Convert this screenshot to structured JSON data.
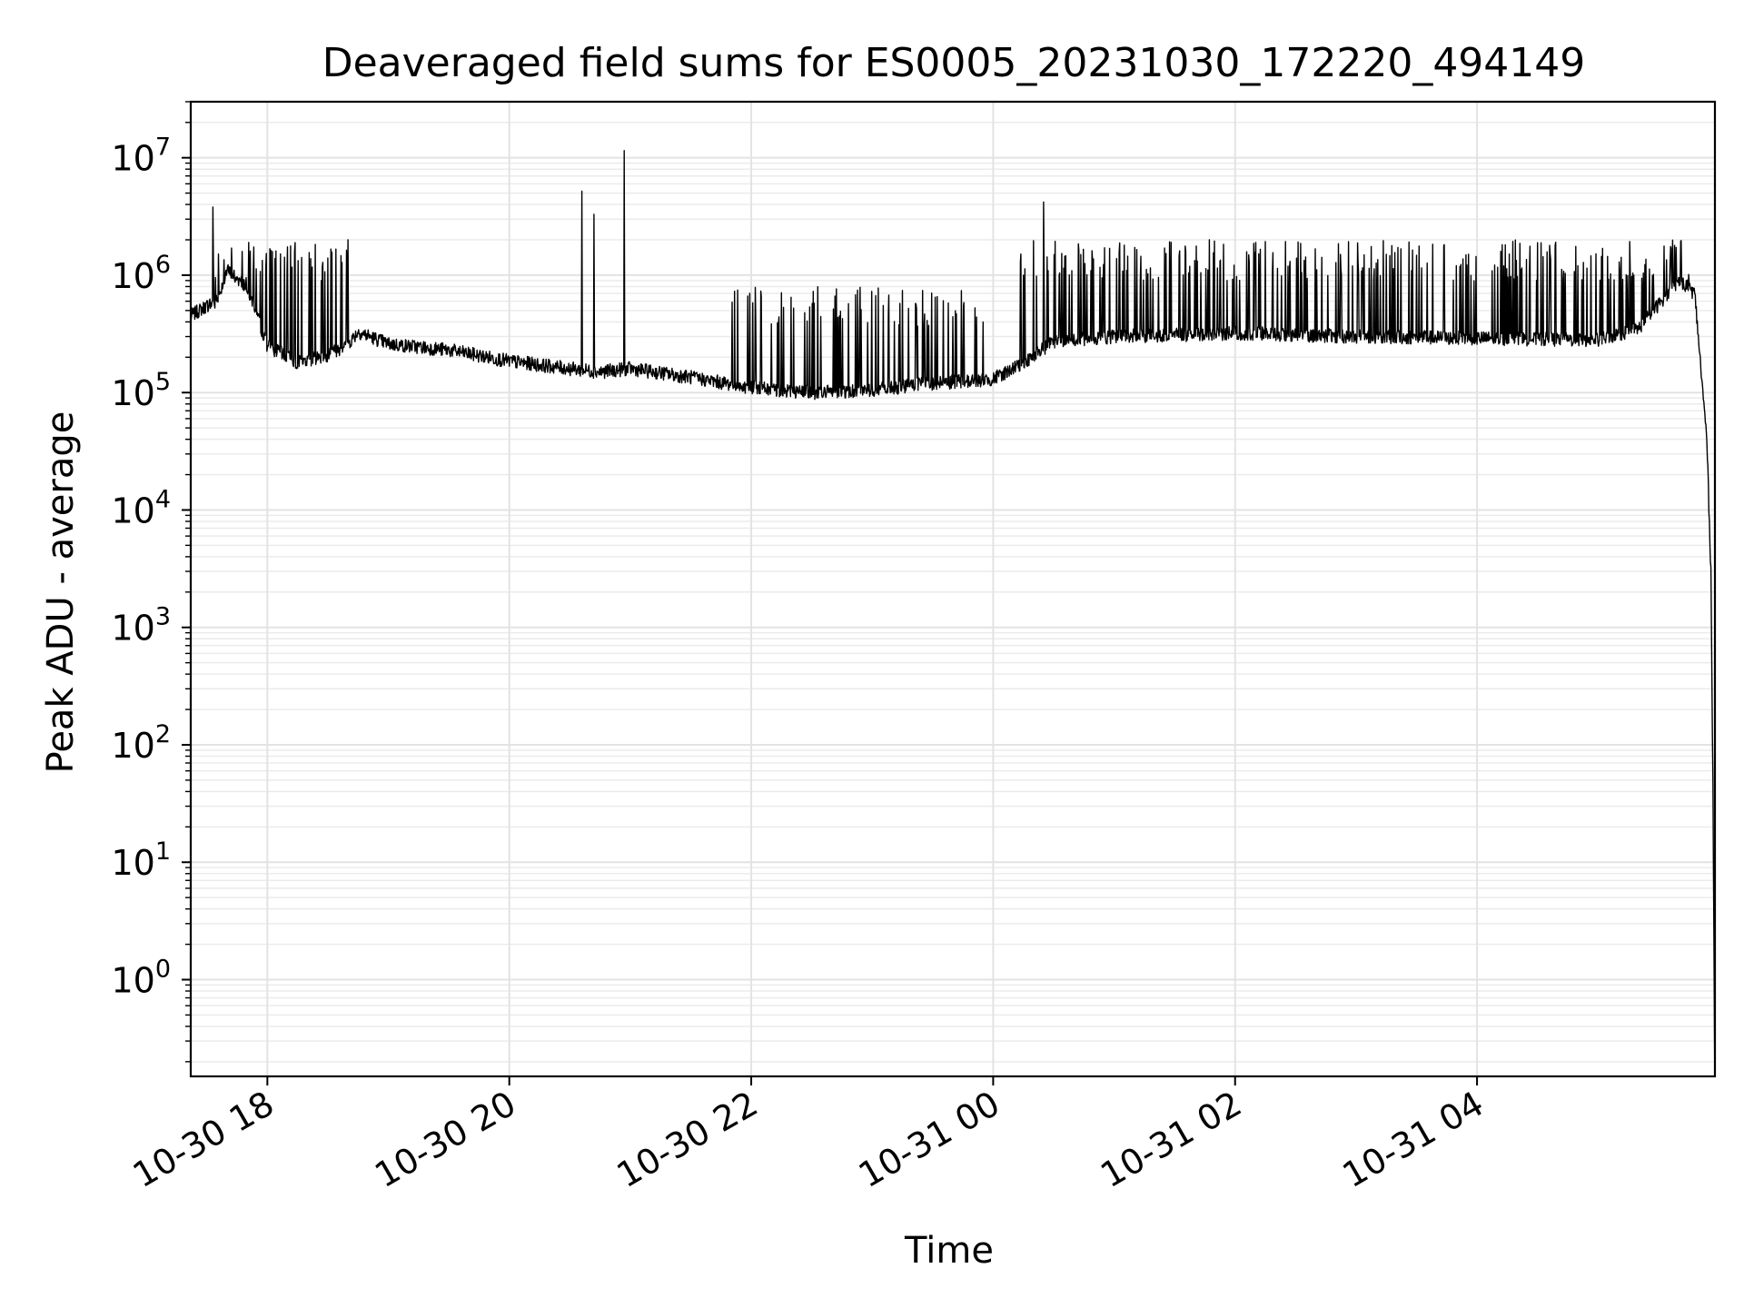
{
  "chart_data": {
    "type": "line",
    "title": "Deaveraged field sums for ES0005_20231030_172220_494149",
    "xlabel": "Time",
    "ylabel": "Peak ADU - average",
    "x_axis": {
      "type": "time",
      "range": [
        "2023-10-30 17:22",
        "2023-10-31 05:58"
      ],
      "tick_values": [
        "2023-10-30 18:00",
        "2023-10-30 20:00",
        "2023-10-30 22:00",
        "2023-10-31 00:00",
        "2023-10-31 02:00",
        "2023-10-31 04:00"
      ],
      "tick_labels": [
        "10-30 18",
        "10-30 20",
        "10-30 22",
        "10-31 00",
        "10-31 02",
        "10-31 04"
      ],
      "tick_label_rotation": "30 degrees"
    },
    "y_axis": {
      "scale": "log",
      "range": [
        0.15,
        30000000.0
      ],
      "tick_values": [
        1,
        10,
        100,
        1000,
        10000,
        100000,
        1000000,
        10000000
      ],
      "tick_labels": [
        {
          "base": "10",
          "exp": "0"
        },
        {
          "base": "10",
          "exp": "1"
        },
        {
          "base": "10",
          "exp": "2"
        },
        {
          "base": "10",
          "exp": "3"
        },
        {
          "base": "10",
          "exp": "4"
        },
        {
          "base": "10",
          "exp": "5"
        },
        {
          "base": "10",
          "exp": "6"
        },
        {
          "base": "10",
          "exp": "7"
        }
      ]
    },
    "grid": "major and minor, both axes, light gray",
    "line_color": "#000000",
    "series": [
      {
        "x": [
          "2023-10-30 17:22",
          "2023-10-30 17:30",
          "2023-10-30 17:35",
          "2023-10-30 17:40",
          "2023-10-30 17:50",
          "2023-10-30 18:00",
          "2023-10-30 18:15",
          "2023-10-30 18:30",
          "2023-10-30 18:40",
          "2023-10-30 18:45",
          "2023-10-30 19:00",
          "2023-10-30 19:30",
          "2023-10-30 20:00",
          "2023-10-30 20:30",
          "2023-10-30 20:45",
          "2023-10-30 21:00",
          "2023-10-30 21:30",
          "2023-10-30 22:00",
          "2023-10-30 22:30",
          "2023-10-30 23:00",
          "2023-10-30 23:30",
          "2023-10-31 00:00",
          "2023-10-31 00:15",
          "2023-10-31 00:30",
          "2023-10-31 01:00",
          "2023-10-31 02:00",
          "2023-10-31 03:00",
          "2023-10-31 04:00",
          "2023-10-31 05:00",
          "2023-10-31 05:20",
          "2023-10-31 05:40",
          "2023-10-31 05:48",
          "2023-10-31 05:52",
          "2023-10-31 05:54",
          "2023-10-31 05:56",
          "2023-10-31 05:57",
          "2023-10-31 05:58"
        ],
        "y": [
          450000,
          550000,
          600000,
          1100000,
          800000,
          250000,
          180000,
          210000,
          260000,
          330000,
          260000,
          230000,
          185000,
          160000,
          150000,
          160000,
          135000,
          110000,
          100000,
          105000,
          120000,
          130000,
          180000,
          270000,
          300000,
          320000,
          300000,
          290000,
          280000,
          350000,
          900000,
          700000,
          100000,
          40000,
          3000,
          50,
          0.1
        ]
      }
    ],
    "spikes": {
      "x": [
        "2023-10-30 17:33",
        "2023-10-30 18:40",
        "2023-10-30 20:36",
        "2023-10-30 20:42",
        "2023-10-30 20:57",
        "2023-10-31 00:25",
        "2023-10-31 05:50"
      ],
      "y": [
        3800000,
        2000000,
        5200000,
        3300000,
        11500000,
        4200000,
        260000
      ]
    },
    "oscillation_bands": [
      {
        "from": "2023-10-30 17:30",
        "to": "2023-10-30 18:40",
        "peak": 1900000
      },
      {
        "from": "2023-10-30 21:50",
        "to": "2023-10-30 23:55",
        "peak": 800000
      },
      {
        "from": "2023-10-31 00:10",
        "to": "2023-10-31 05:45",
        "peak": 2000000
      }
    ]
  }
}
